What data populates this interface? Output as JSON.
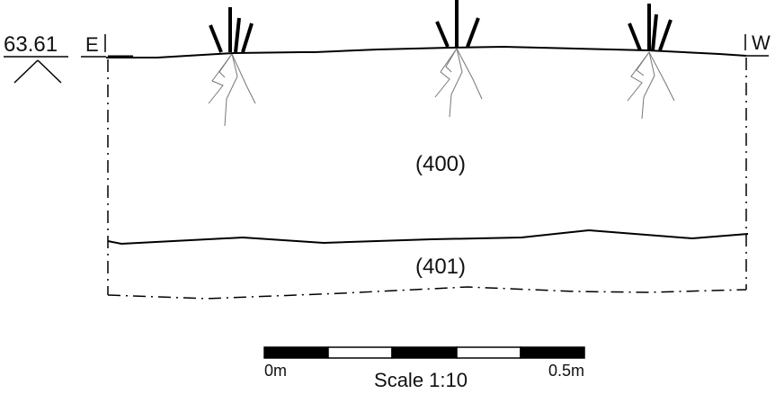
{
  "datum": {
    "label": "63.61"
  },
  "section": {
    "east": "E",
    "west": "W",
    "layers": [
      {
        "label": "(400)"
      },
      {
        "label": "(401)"
      }
    ]
  },
  "scale": {
    "start": "0m",
    "end": "0.5m",
    "label": "Scale 1:10"
  }
}
